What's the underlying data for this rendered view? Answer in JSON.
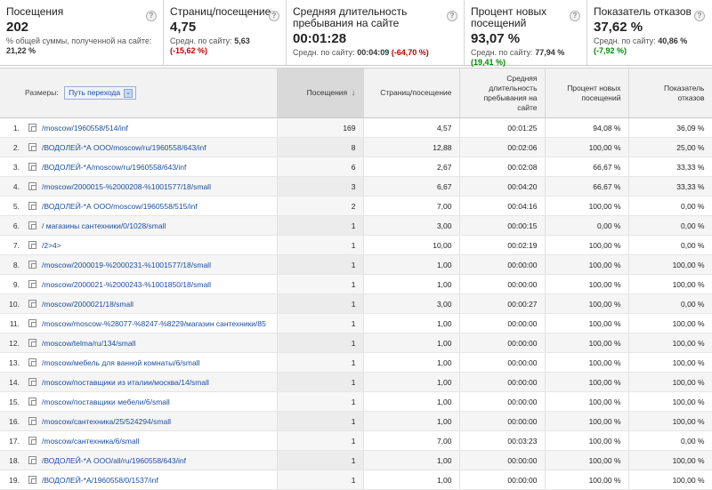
{
  "scorecards": [
    {
      "title": "Посещения",
      "value": "202",
      "sub_prefix": "% общей суммы, полученной на сайте:",
      "sub_value": "21,22 %",
      "delta": "",
      "delta_class": ""
    },
    {
      "title": "Страниц/посещение",
      "value": "4,75",
      "sub_prefix": "Средн. по сайту:",
      "sub_value": "5,63",
      "delta": "(-15,62 %)",
      "delta_class": "neg"
    },
    {
      "title": "Средняя длительность пребывания на сайте",
      "value": "00:01:28",
      "sub_prefix": "Средн. по сайту:",
      "sub_value": "00:04:09",
      "delta": "(-64,70 %)",
      "delta_class": "neg"
    },
    {
      "title": "Процент новых посещений",
      "value": "93,07 %",
      "sub_prefix": "Средн. по сайту:",
      "sub_value": "77,94 %",
      "delta": "(19,41 %)",
      "delta_class": "pos"
    },
    {
      "title": "Показатель отказов",
      "value": "37,62 %",
      "sub_prefix": "Средн. по сайту:",
      "sub_value": "40,86 %",
      "delta": "(-7,92 %)",
      "delta_class": "pos"
    }
  ],
  "help_glyph": "?",
  "table": {
    "dimension_label": "Размеры:",
    "dimension_value": "Путь перехода",
    "columns": [
      "Посещения",
      "Страниц/посещение",
      "Средняя длительность пребывания на сайте",
      "Процент новых посещений",
      "Показатель отказов"
    ],
    "sort_arrow": "↓",
    "rows": [
      {
        "n": "1.",
        "path": "/moscow/1960558/514/inf",
        "visits": "169",
        "pages": "4,57",
        "duration": "00:01:25",
        "new": "94,08 %",
        "bounce": "36,09 %"
      },
      {
        "n": "2.",
        "path": "/ВОДОЛЕЙ-*А ООО/moscow/ru/1960558/643/inf",
        "visits": "8",
        "pages": "12,88",
        "duration": "00:02:06",
        "new": "100,00 %",
        "bounce": "25,00 %"
      },
      {
        "n": "3.",
        "path": "/ВОДОЛЕЙ-*А/moscow/ru/1960558/643/inf",
        "visits": "6",
        "pages": "2,67",
        "duration": "00:02:08",
        "new": "66,67 %",
        "bounce": "33,33 %"
      },
      {
        "n": "4.",
        "path": "/moscow/2000015-%2000208-%1001577/18/small",
        "visits": "3",
        "pages": "6,67",
        "duration": "00:04:20",
        "new": "66,67 %",
        "bounce": "33,33 %"
      },
      {
        "n": "5.",
        "path": "/ВОДОЛЕЙ-*А ООО/moscow/1960558/515/inf",
        "visits": "2",
        "pages": "7,00",
        "duration": "00:04:16",
        "new": "100,00 %",
        "bounce": "0,00 %"
      },
      {
        "n": "6.",
        "path": "/ магазины сантехники/0/1028/small",
        "visits": "1",
        "pages": "3,00",
        "duration": "00:00:15",
        "new": "0,00 %",
        "bounce": "0,00 %"
      },
      {
        "n": "7.",
        "path": "/2>4>",
        "visits": "1",
        "pages": "10,00",
        "duration": "00:02:19",
        "new": "100,00 %",
        "bounce": "0,00 %"
      },
      {
        "n": "8.",
        "path": "/moscow/2000019-%2000231-%1001577/18/small",
        "visits": "1",
        "pages": "1,00",
        "duration": "00:00:00",
        "new": "100,00 %",
        "bounce": "100,00 %"
      },
      {
        "n": "9.",
        "path": "/moscow/2000021-%2000243-%1001850/18/small",
        "visits": "1",
        "pages": "1,00",
        "duration": "00:00:00",
        "new": "100,00 %",
        "bounce": "100,00 %"
      },
      {
        "n": "10.",
        "path": "/moscow/2000021/18/small",
        "visits": "1",
        "pages": "3,00",
        "duration": "00:00:27",
        "new": "100,00 %",
        "bounce": "0,00 %"
      },
      {
        "n": "11.",
        "path": "/moscow/moscow-%28077-%8247-%8229/магазин сантехники/85",
        "visits": "1",
        "pages": "1,00",
        "duration": "00:00:00",
        "new": "100,00 %",
        "bounce": "100,00 %"
      },
      {
        "n": "12.",
        "path": "/moscow/telma/ru/134/small",
        "visits": "1",
        "pages": "1,00",
        "duration": "00:00:00",
        "new": "100,00 %",
        "bounce": "100,00 %"
      },
      {
        "n": "13.",
        "path": "/moscow/мебель для ванной комнаты/6/small",
        "visits": "1",
        "pages": "1,00",
        "duration": "00:00:00",
        "new": "100,00 %",
        "bounce": "100,00 %"
      },
      {
        "n": "14.",
        "path": "/moscow/поставщики из италии/москва/14/small",
        "visits": "1",
        "pages": "1,00",
        "duration": "00:00:00",
        "new": "100,00 %",
        "bounce": "100,00 %"
      },
      {
        "n": "15.",
        "path": "/moscow/поставщики мебели/6/small",
        "visits": "1",
        "pages": "1,00",
        "duration": "00:00:00",
        "new": "100,00 %",
        "bounce": "100,00 %"
      },
      {
        "n": "16.",
        "path": "/moscow/сантехника/25/524294/small",
        "visits": "1",
        "pages": "1,00",
        "duration": "00:00:00",
        "new": "100,00 %",
        "bounce": "100,00 %"
      },
      {
        "n": "17.",
        "path": "/moscow/сантехника/6/small",
        "visits": "1",
        "pages": "7,00",
        "duration": "00:03:23",
        "new": "100,00 %",
        "bounce": "0,00 %"
      },
      {
        "n": "18.",
        "path": "/ВОДОЛЕЙ-*А ООО/all/ru/1960558/643/inf",
        "visits": "1",
        "pages": "1,00",
        "duration": "00:00:00",
        "new": "100,00 %",
        "bounce": "100,00 %"
      },
      {
        "n": "19.",
        "path": "/ВОДОЛЕЙ-*А/1960558/0/1537/inf",
        "visits": "1",
        "pages": "1,00",
        "duration": "00:00:00",
        "new": "100,00 %",
        "bounce": "100,00 %"
      }
    ]
  }
}
